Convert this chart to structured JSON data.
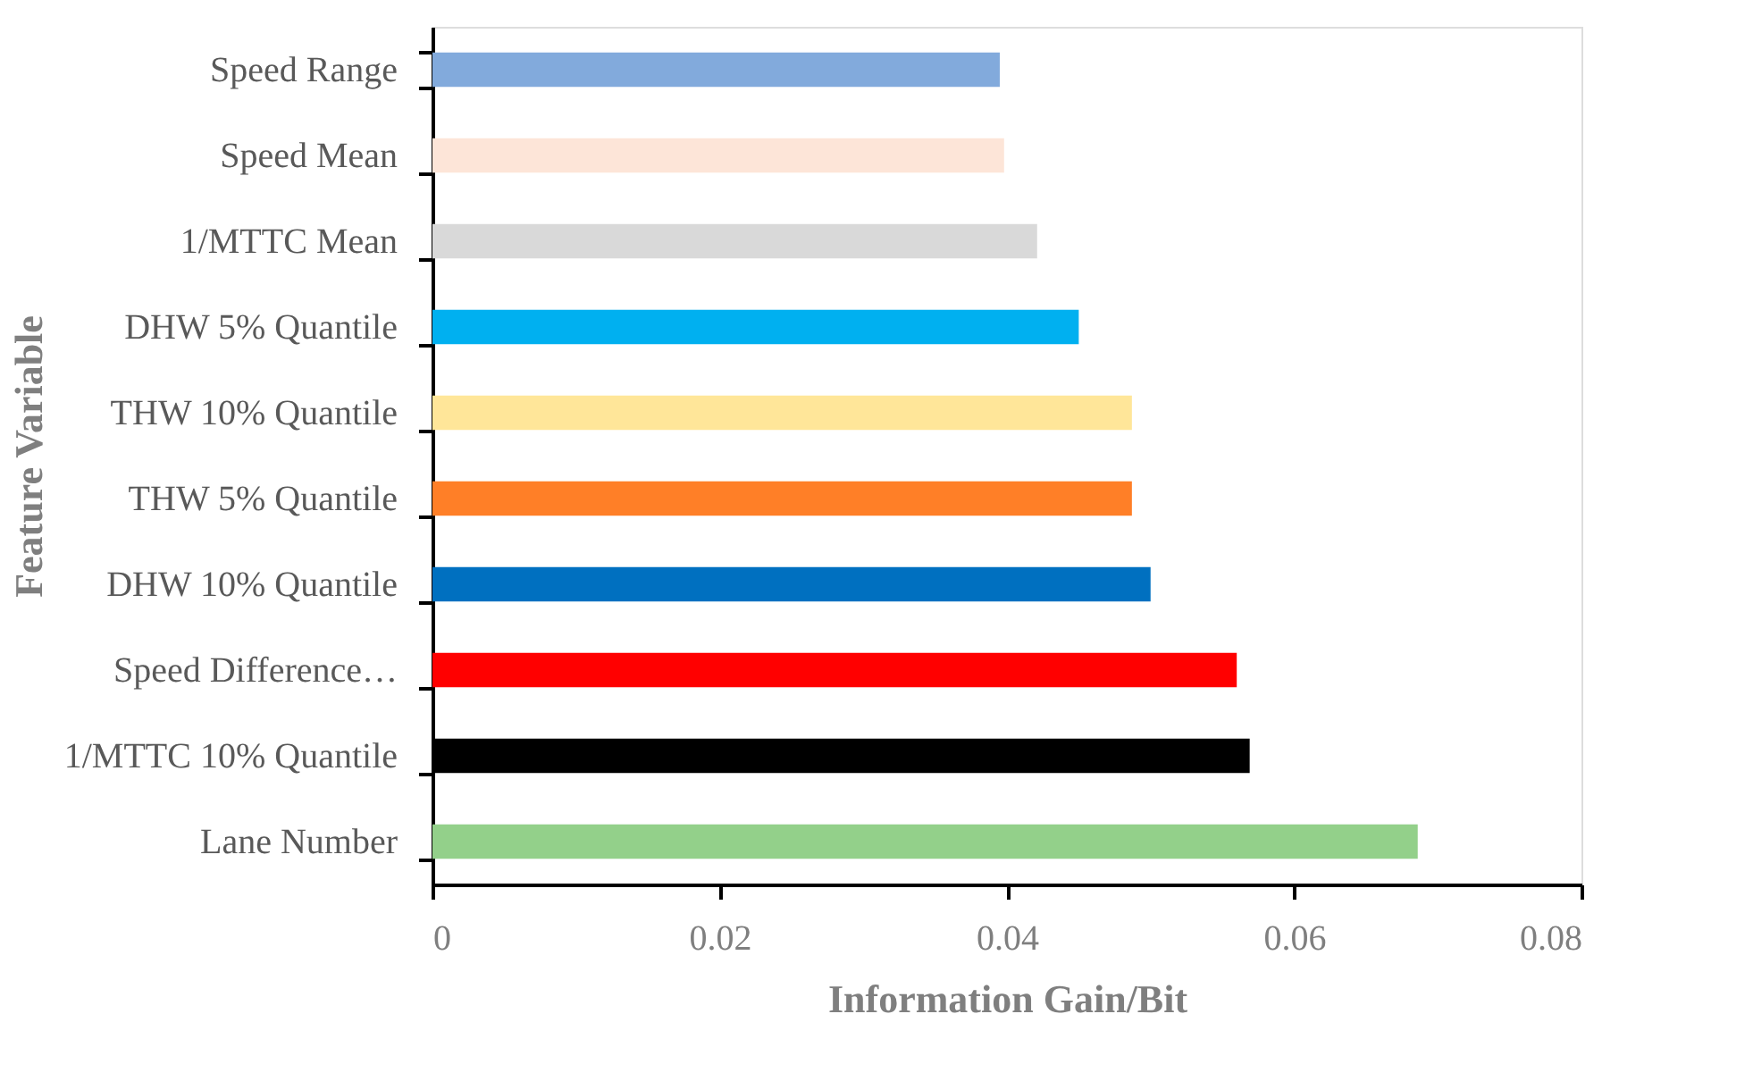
{
  "chart_data": {
    "type": "bar",
    "orientation": "horizontal",
    "xlabel": "Information Gain/Bit",
    "ylabel": "Feature Variable",
    "categories": [
      "Speed Range",
      "Speed Mean",
      "1/MTTC Mean",
      "DHW 5% Quantile",
      "THW 10% Quantile",
      "THW 5% Quantile",
      "DHW 10% Quantile",
      "Speed Difference…",
      "1/MTTC 10% Quantile",
      "Lane Number"
    ],
    "values": [
      0.0395,
      0.0398,
      0.0421,
      0.045,
      0.0487,
      0.0487,
      0.05,
      0.056,
      0.0569,
      0.0686
    ],
    "colors": [
      "#82aadc",
      "#fde5d8",
      "#d9d9d9",
      "#00b0f0",
      "#ffe699",
      "#ff7f27",
      "#0070c0",
      "#ff0000",
      "#000000",
      "#93d08a"
    ],
    "xlim": [
      0,
      0.08
    ],
    "xticks": [
      0,
      0.02,
      0.04,
      0.06,
      0.08
    ],
    "grid": false,
    "legend": false
  }
}
